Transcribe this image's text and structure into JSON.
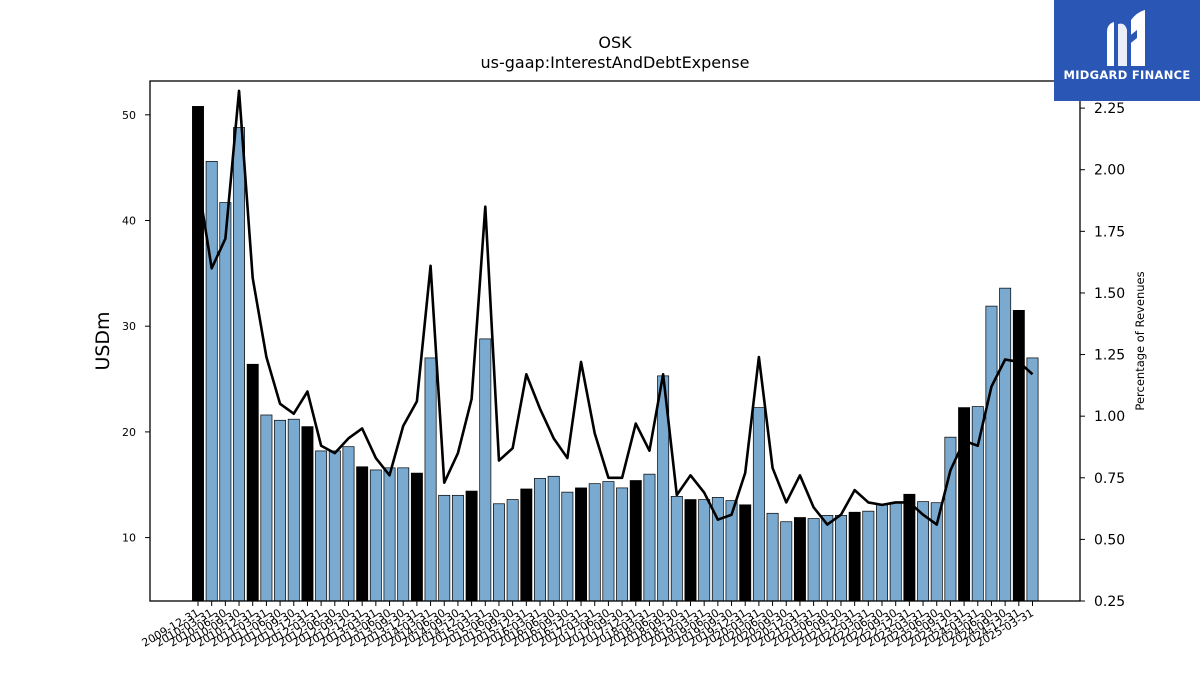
{
  "brand": {
    "name": "MIDGARD FINANCE",
    "logo_color": "#2a56b5"
  },
  "colors": {
    "bar_q4": "#000000",
    "bar_other": "#7aaad0",
    "line": "#000000"
  },
  "chart_data": {
    "type": "bar",
    "title": "OSK",
    "subtitle": "us-gaap:InterestAndDebtExpense",
    "ylabel": "USDm",
    "y2label": "Percentage of Revenues",
    "ylim": [
      4.0,
      53.2
    ],
    "y2lim": [
      0.25,
      2.36
    ],
    "yticks": [
      10,
      20,
      30,
      40,
      50
    ],
    "y2ticks": [
      0.25,
      0.5,
      0.75,
      1.0,
      1.25,
      1.5,
      1.75,
      2.0,
      2.25
    ],
    "y2tick_labels": [
      "0.25",
      "0.50",
      "0.75",
      "1.00",
      "1.25",
      "1.50",
      "1.75",
      "2.00",
      "2.25"
    ],
    "categories": [
      "2009-12-31",
      "2010-03-31",
      "2010-06-30",
      "2010-09-30",
      "2010-12-31",
      "2011-03-31",
      "2011-06-30",
      "2011-09-30",
      "2011-12-31",
      "2012-03-31",
      "2012-06-30",
      "2012-09-30",
      "2012-12-31",
      "2013-03-31",
      "2013-06-30",
      "2013-09-30",
      "2013-12-31",
      "2014-03-31",
      "2014-06-30",
      "2014-09-30",
      "2014-12-31",
      "2015-03-31",
      "2015-06-30",
      "2015-09-30",
      "2015-12-31",
      "2016-03-31",
      "2016-06-30",
      "2016-09-30",
      "2016-12-31",
      "2017-03-31",
      "2017-06-30",
      "2017-09-30",
      "2017-12-31",
      "2018-03-31",
      "2018-06-30",
      "2018-09-30",
      "2018-12-31",
      "2019-03-31",
      "2019-06-30",
      "2019-09-30",
      "2019-12-31",
      "2020-03-31",
      "2020-06-30",
      "2020-09-30",
      "2020-12-31",
      "2021-03-31",
      "2021-06-30",
      "2021-09-30",
      "2021-12-31",
      "2022-03-31",
      "2022-06-30",
      "2022-09-30",
      "2022-12-31",
      "2023-03-31",
      "2023-06-30",
      "2023-09-30",
      "2023-12-31",
      "2024-03-31",
      "2024-06-30",
      "2024-09-30",
      "2024-12-31",
      "2025-03-31"
    ],
    "visible_tick_labels": [
      "2009-12-31",
      "2010-03-31",
      "2010-06-30",
      "2010-09-30",
      "2010-12-31",
      "2011-03-31",
      "2011-06-30",
      "2011-09-30",
      "2011-12-31",
      "2012-03-31",
      "2012-06-30",
      "2012-09-30",
      "2012-12-31",
      "2013-03-31",
      "2013-06-30",
      "2013-09-30",
      "2013-12-31",
      "2014-03-31",
      "2014-06-30",
      "2014-09-30",
      "2014-12-31",
      "2015-03-31",
      "2015-06-30",
      "2015-09-30",
      "2015-12-31",
      "2016-03-31",
      "2016-06-30",
      "2016-09-30",
      "2016-12-31",
      "2017-03-31",
      "2017-06-30",
      "2017-09-30",
      "2017-12-31",
      "2018-03-31",
      "2018-06-30",
      "2018-09-30",
      "2018-12-31",
      "2019-03-31",
      "2019-06-30",
      "2019-09-30",
      "2019-12-31",
      "2020-03-31",
      "2020-06-30",
      "2020-09-30",
      "2020-12-31",
      "2021-03-31",
      "2021-06-30",
      "2021-09-30",
      "2021-12-31",
      "2022-03-31",
      "2022-06-30",
      "2022-09-30",
      "2022-12-31",
      "2023-03-31",
      "2023-06-30",
      "2023-09-30",
      "2023-12-31",
      "2024-03-31",
      "2024-06-30",
      "2024-09-30",
      "2024-12-31",
      "2025-03-31"
    ],
    "series": [
      {
        "type": "bar",
        "values": [
          50.8,
          45.6,
          41.7,
          48.8,
          26.4,
          21.6,
          21.1,
          21.2,
          20.5,
          18.2,
          18.2,
          18.6,
          16.7,
          16.4,
          16.6,
          16.6,
          16.1,
          27.0,
          14.0,
          14.0,
          14.4,
          28.8,
          13.2,
          13.6,
          14.6,
          15.6,
          15.8,
          14.3,
          14.7,
          15.1,
          15.3,
          14.7,
          15.4,
          16.0,
          25.3,
          13.9,
          13.6,
          13.6,
          13.8,
          13.5,
          13.1,
          22.3,
          12.3,
          11.5,
          11.9,
          11.8,
          12.1,
          12.1,
          12.4,
          12.5,
          13.1,
          13.3,
          14.1,
          13.4,
          13.3,
          19.5,
          22.3,
          22.4,
          31.9,
          33.6,
          31.5,
          27.0
        ]
      },
      {
        "type": "line",
        "axis": "right",
        "values": [
          1.95,
          1.6,
          1.72,
          2.32,
          1.56,
          1.24,
          1.05,
          1.01,
          1.1,
          0.88,
          0.85,
          0.91,
          0.95,
          0.83,
          0.76,
          0.96,
          1.06,
          1.61,
          0.73,
          0.85,
          1.07,
          1.85,
          0.82,
          0.87,
          1.17,
          1.03,
          0.91,
          0.83,
          1.22,
          0.93,
          0.75,
          0.75,
          0.97,
          0.86,
          1.17,
          0.68,
          0.76,
          0.69,
          0.58,
          0.6,
          0.77,
          1.24,
          0.79,
          0.65,
          0.76,
          0.63,
          0.56,
          0.6,
          0.7,
          0.65,
          0.64,
          0.65,
          0.65,
          0.6,
          0.56,
          0.78,
          0.9,
          0.88,
          1.12,
          1.23,
          1.22,
          1.17
        ]
      }
    ],
    "bar_highlight_rule": "Q4 bars (12-31) black, other quarters light blue",
    "grid": false,
    "legend": "none"
  }
}
